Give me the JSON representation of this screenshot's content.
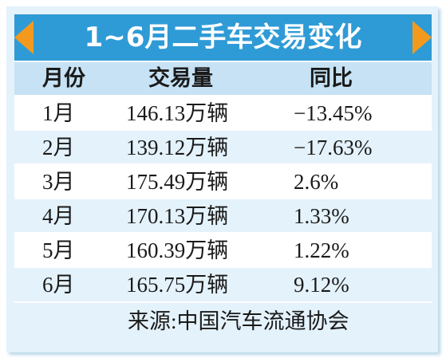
{
  "title": "1~6月二手车交易变化",
  "table": {
    "header": [
      "月份",
      "交易量",
      "同比"
    ],
    "rows": [
      [
        "1月",
        "146.13万辆",
        "−13.45%"
      ],
      [
        "2月",
        "139.12万辆",
        "−17.63%"
      ],
      [
        "3月",
        "175.49万辆",
        "2.6%"
      ],
      [
        "4月",
        "170.13万辆",
        "1.33%"
      ],
      [
        "5月",
        "160.39万辆",
        "1.22%"
      ],
      [
        "6月",
        "165.75万辆",
        "9.12%"
      ]
    ]
  },
  "source": "来源:中国汽车流通协会"
}
